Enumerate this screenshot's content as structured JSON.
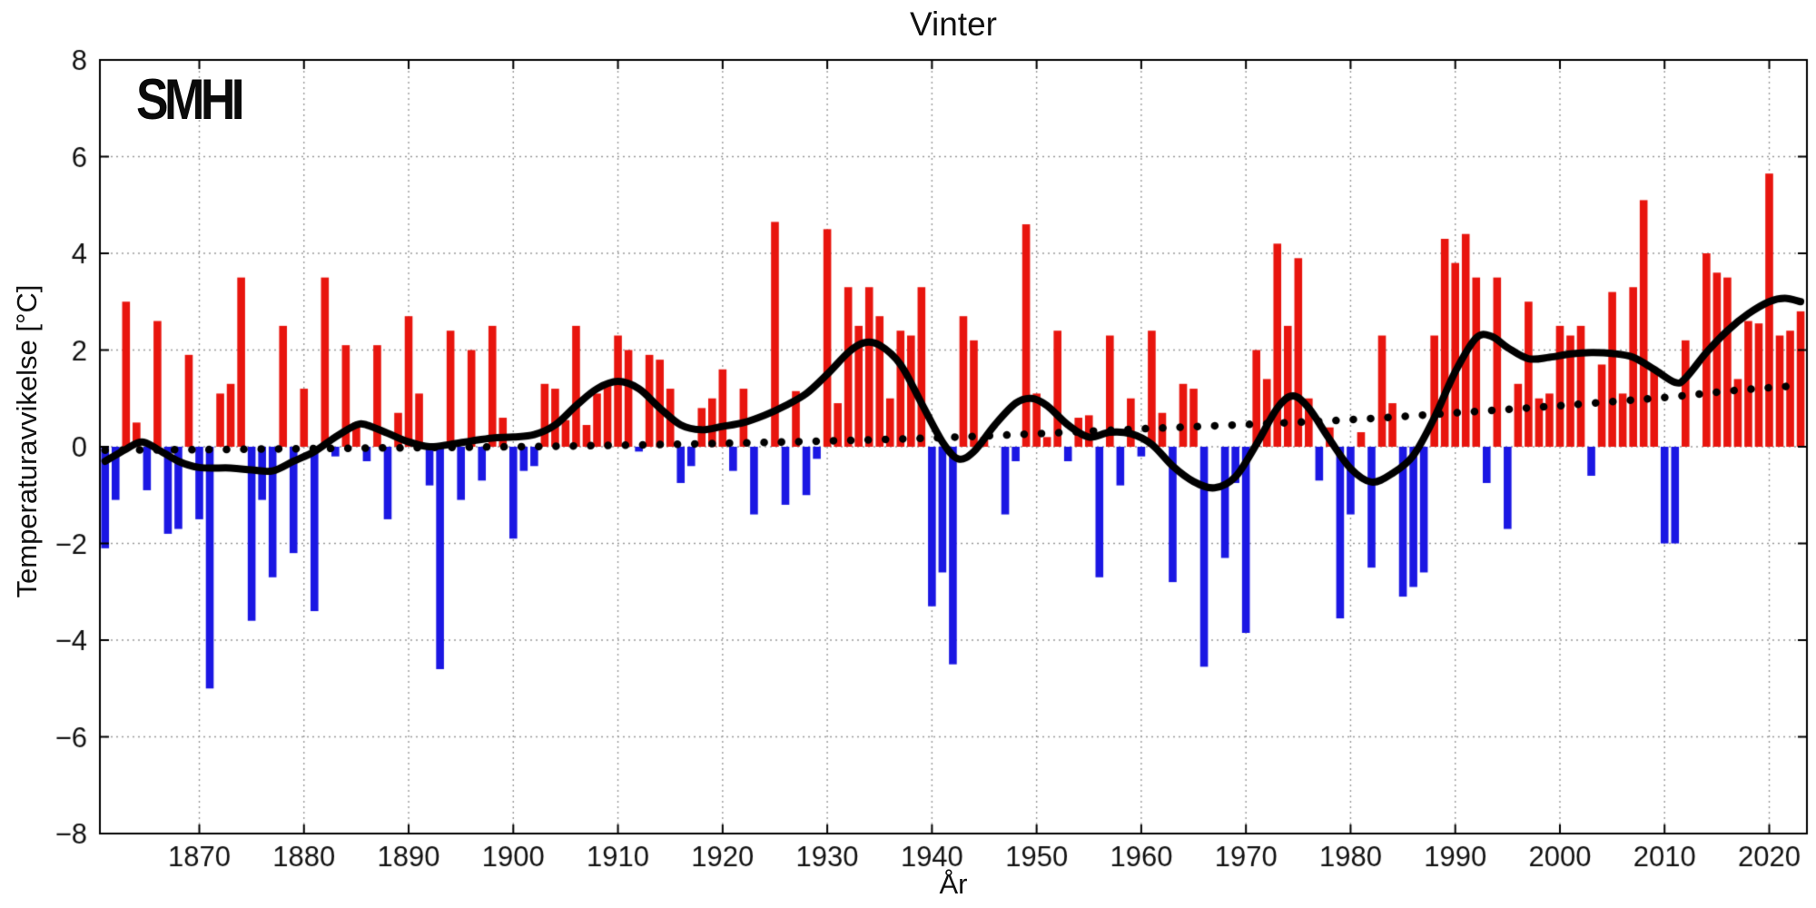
{
  "title": "Vinter",
  "logo_text": "SMHI",
  "chart_data": {
    "type": "bar",
    "title": "Vinter",
    "xlabel": "År",
    "ylabel": "Temperaturavvikelse [°C]",
    "xlim": [
      1860.5,
      2023.6
    ],
    "ylim": [
      -8,
      8
    ],
    "x_ticks": [
      1870,
      1880,
      1890,
      1900,
      1910,
      1920,
      1930,
      1940,
      1950,
      1960,
      1970,
      1980,
      1990,
      2000,
      2010,
      2020
    ],
    "y_ticks": [
      -8,
      -6,
      -4,
      -2,
      0,
      2,
      4,
      6,
      8
    ],
    "grid": true,
    "grid_style": "dotted",
    "positive_color": "#e8150e",
    "negative_color": "#1b17e3",
    "line_color": "#000000",
    "years": [
      1861,
      1862,
      1863,
      1864,
      1865,
      1866,
      1867,
      1868,
      1869,
      1870,
      1871,
      1872,
      1873,
      1874,
      1875,
      1876,
      1877,
      1878,
      1879,
      1880,
      1881,
      1882,
      1883,
      1884,
      1885,
      1886,
      1887,
      1888,
      1889,
      1890,
      1891,
      1892,
      1893,
      1894,
      1895,
      1896,
      1897,
      1898,
      1899,
      1900,
      1901,
      1902,
      1903,
      1904,
      1905,
      1906,
      1907,
      1908,
      1909,
      1910,
      1911,
      1912,
      1913,
      1914,
      1915,
      1916,
      1917,
      1918,
      1919,
      1920,
      1921,
      1922,
      1923,
      1924,
      1925,
      1926,
      1927,
      1928,
      1929,
      1930,
      1931,
      1932,
      1933,
      1934,
      1935,
      1936,
      1937,
      1938,
      1939,
      1940,
      1941,
      1942,
      1943,
      1944,
      1945,
      1946,
      1947,
      1948,
      1949,
      1950,
      1951,
      1952,
      1953,
      1954,
      1955,
      1956,
      1957,
      1958,
      1959,
      1960,
      1961,
      1962,
      1963,
      1964,
      1965,
      1966,
      1967,
      1968,
      1969,
      1970,
      1971,
      1972,
      1973,
      1974,
      1975,
      1976,
      1977,
      1978,
      1979,
      1980,
      1981,
      1982,
      1983,
      1984,
      1985,
      1986,
      1987,
      1988,
      1989,
      1990,
      1991,
      1992,
      1993,
      1994,
      1995,
      1996,
      1997,
      1998,
      1999,
      2000,
      2001,
      2002,
      2003,
      2004,
      2005,
      2006,
      2007,
      2008,
      2009,
      2010,
      2011,
      2012,
      2013,
      2014,
      2015,
      2016,
      2017,
      2018,
      2019,
      2020,
      2021,
      2022,
      2023
    ],
    "anomalies": [
      -2.1,
      -1.1,
      3.0,
      0.5,
      -0.9,
      2.6,
      -1.8,
      -1.7,
      1.9,
      -1.5,
      -5.0,
      1.1,
      1.3,
      3.5,
      -3.6,
      -1.1,
      -2.7,
      2.5,
      -2.2,
      1.2,
      -3.4,
      3.5,
      -0.2,
      2.1,
      0.5,
      -0.3,
      2.1,
      -1.5,
      0.7,
      2.7,
      1.1,
      -0.8,
      -4.6,
      2.4,
      -1.1,
      2.0,
      -0.7,
      2.5,
      0.6,
      -1.9,
      -0.5,
      -0.4,
      1.3,
      1.2,
      0.55,
      2.5,
      0.45,
      1.1,
      1.3,
      2.3,
      2.0,
      -0.1,
      1.9,
      1.8,
      1.2,
      -0.75,
      -0.4,
      0.8,
      1.0,
      1.6,
      -0.5,
      1.2,
      -1.4,
      0.0,
      4.65,
      -1.2,
      1.15,
      -1.0,
      -0.25,
      4.5,
      0.9,
      3.3,
      2.5,
      3.3,
      2.7,
      1.0,
      2.4,
      2.3,
      3.3,
      -3.3,
      -2.6,
      -4.5,
      2.7,
      2.2,
      0.2,
      0.0,
      -1.4,
      -0.3,
      4.6,
      1.1,
      0.2,
      2.4,
      -0.3,
      0.6,
      0.65,
      -2.7,
      2.3,
      -0.8,
      1.0,
      -0.2,
      2.4,
      0.7,
      -2.8,
      1.3,
      1.2,
      -4.55,
      0.0,
      -2.3,
      -0.75,
      -3.85,
      2.0,
      1.4,
      4.2,
      2.5,
      3.9,
      1.0,
      -0.7,
      0.4,
      -3.55,
      -1.4,
      0.3,
      -2.5,
      2.3,
      0.9,
      -3.1,
      -2.9,
      -2.6,
      2.3,
      4.3,
      3.8,
      4.4,
      3.5,
      -0.75,
      3.5,
      -1.7,
      1.3,
      3.0,
      1.0,
      1.1,
      2.5,
      2.3,
      2.5,
      -0.6,
      1.7,
      3.2,
      1.1,
      3.3,
      5.1,
      1.6,
      -2.0,
      -2.0,
      2.2,
      0.0,
      4.0,
      3.6,
      3.5,
      1.4,
      2.6,
      2.55,
      5.65,
      2.3,
      2.4,
      2.8
    ],
    "smooth_line_points": [
      [
        1861,
        -0.3
      ],
      [
        1863,
        -0.05
      ],
      [
        1864.5,
        0.1
      ],
      [
        1866,
        -0.05
      ],
      [
        1868,
        -0.3
      ],
      [
        1870,
        -0.43
      ],
      [
        1873,
        -0.44
      ],
      [
        1875,
        -0.48
      ],
      [
        1877,
        -0.5
      ],
      [
        1879,
        -0.3
      ],
      [
        1881,
        -0.1
      ],
      [
        1883,
        0.2
      ],
      [
        1885,
        0.45
      ],
      [
        1886,
        0.45
      ],
      [
        1888,
        0.28
      ],
      [
        1890,
        0.1
      ],
      [
        1892,
        0.0
      ],
      [
        1894,
        0.05
      ],
      [
        1896,
        0.12
      ],
      [
        1898,
        0.18
      ],
      [
        1900,
        0.2
      ],
      [
        1902,
        0.25
      ],
      [
        1904,
        0.45
      ],
      [
        1906,
        0.85
      ],
      [
        1908,
        1.2
      ],
      [
        1910,
        1.35
      ],
      [
        1912,
        1.2
      ],
      [
        1914,
        0.8
      ],
      [
        1916,
        0.45
      ],
      [
        1918,
        0.35
      ],
      [
        1920,
        0.42
      ],
      [
        1922,
        0.5
      ],
      [
        1924,
        0.65
      ],
      [
        1926,
        0.85
      ],
      [
        1928,
        1.1
      ],
      [
        1930,
        1.5
      ],
      [
        1932,
        1.95
      ],
      [
        1933.5,
        2.15
      ],
      [
        1935,
        2.1
      ],
      [
        1937,
        1.7
      ],
      [
        1939,
        0.9
      ],
      [
        1941,
        0.1
      ],
      [
        1942.5,
        -0.25
      ],
      [
        1944,
        -0.1
      ],
      [
        1946,
        0.45
      ],
      [
        1948,
        0.9
      ],
      [
        1949.5,
        1.0
      ],
      [
        1951,
        0.85
      ],
      [
        1953,
        0.45
      ],
      [
        1955,
        0.2
      ],
      [
        1957,
        0.3
      ],
      [
        1959,
        0.27
      ],
      [
        1961,
        0.05
      ],
      [
        1963,
        -0.4
      ],
      [
        1965,
        -0.72
      ],
      [
        1967,
        -0.85
      ],
      [
        1969,
        -0.62
      ],
      [
        1971,
        0.05
      ],
      [
        1973,
        0.8
      ],
      [
        1974.5,
        1.05
      ],
      [
        1976,
        0.8
      ],
      [
        1978,
        0.15
      ],
      [
        1980,
        -0.45
      ],
      [
        1982,
        -0.73
      ],
      [
        1984,
        -0.55
      ],
      [
        1986,
        -0.18
      ],
      [
        1988,
        0.6
      ],
      [
        1990,
        1.55
      ],
      [
        1992,
        2.25
      ],
      [
        1993.5,
        2.28
      ],
      [
        1995,
        2.05
      ],
      [
        1997,
        1.82
      ],
      [
        1999,
        1.85
      ],
      [
        2001,
        1.92
      ],
      [
        2003,
        1.95
      ],
      [
        2005,
        1.93
      ],
      [
        2007,
        1.85
      ],
      [
        2009,
        1.6
      ],
      [
        2011,
        1.33
      ],
      [
        2012,
        1.42
      ],
      [
        2014,
        1.95
      ],
      [
        2016,
        2.4
      ],
      [
        2018,
        2.75
      ],
      [
        2020,
        3.0
      ],
      [
        2021.5,
        3.07
      ],
      [
        2023,
        3.0
      ]
    ],
    "trend_line_points": [
      [
        1861,
        -0.07
      ],
      [
        1870,
        -0.06
      ],
      [
        1880,
        -0.04
      ],
      [
        1890,
        -0.02
      ],
      [
        1900,
        0.0
      ],
      [
        1910,
        0.03
      ],
      [
        1920,
        0.07
      ],
      [
        1930,
        0.12
      ],
      [
        1940,
        0.18
      ],
      [
        1950,
        0.27
      ],
      [
        1960,
        0.37
      ],
      [
        1970,
        0.46
      ],
      [
        1980,
        0.56
      ],
      [
        1990,
        0.7
      ],
      [
        2000,
        0.85
      ],
      [
        2010,
        1.02
      ],
      [
        2016,
        1.15
      ],
      [
        2020,
        1.22
      ],
      [
        2023,
        1.27
      ]
    ]
  }
}
